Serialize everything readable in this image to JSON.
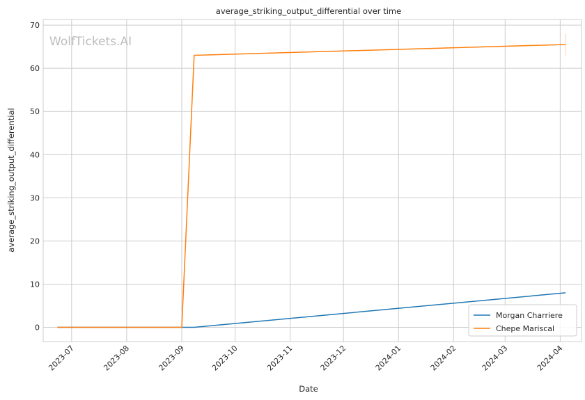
{
  "chart_data": {
    "type": "line",
    "title": "average_striking_output_differential over time",
    "xlabel": "Date",
    "ylabel": "average_striking_output_differential",
    "watermark": "WolfTickets.AI",
    "x_ticks": [
      "2023-07",
      "2023-08",
      "2023-09",
      "2023-10",
      "2023-11",
      "2023-12",
      "2024-01",
      "2024-02",
      "2024-03",
      "2024-04"
    ],
    "y_ticks": [
      0,
      10,
      20,
      30,
      40,
      50,
      60,
      70
    ],
    "xlim": [
      "2023-06-15",
      "2024-04-13"
    ],
    "ylim": [
      -3.3,
      71.3
    ],
    "grid": true,
    "legend_position": "lower-right",
    "series": [
      {
        "name": "Morgan Charriere",
        "color": "#1f77b4",
        "points": [
          {
            "x": "2023-06-23",
            "y": 0
          },
          {
            "x": "2023-09-01",
            "y": 0
          },
          {
            "x": "2023-09-08",
            "y": 0
          },
          {
            "x": "2024-04-04",
            "y": 8
          }
        ]
      },
      {
        "name": "Chepe Mariscal",
        "color": "#ff7f0e",
        "points": [
          {
            "x": "2023-06-23",
            "y": 0
          },
          {
            "x": "2023-09-01",
            "y": 0
          },
          {
            "x": "2023-09-08",
            "y": 63
          },
          {
            "x": "2024-04-04",
            "y": 65.5
          }
        ]
      }
    ],
    "error_bar": {
      "x": "2024-04-04",
      "y_low": 63,
      "y_high": 68,
      "color": "#ff7f0e"
    }
  }
}
